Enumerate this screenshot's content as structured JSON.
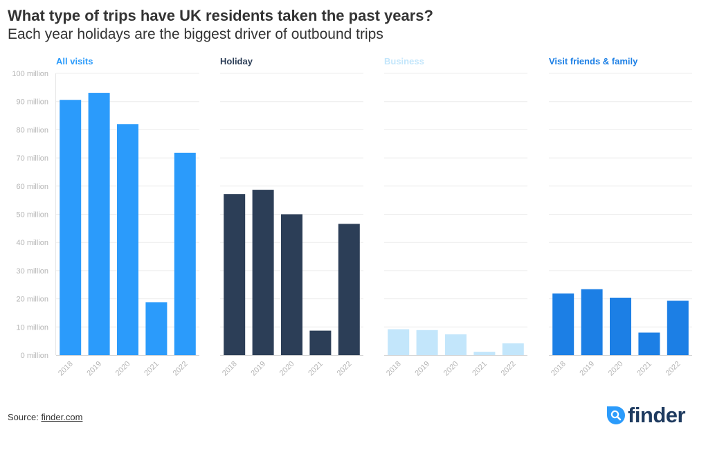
{
  "header": {
    "title": "What type of trips have UK residents taken the past years?",
    "subtitle": "Each year holidays are the biggest driver of outbound trips"
  },
  "footer": {
    "source_label": "Source:",
    "source_link": "finder.com",
    "logo_text": "finder"
  },
  "colors": {
    "all_visits": "#2b9bfb",
    "holiday": "#2c3e57",
    "business": "#c3e6fb",
    "visit_friends_family": "#1c7fe5"
  },
  "chart_data": {
    "type": "bar",
    "layout": "small-multiples",
    "ylim": [
      0,
      100
    ],
    "y_ticks": [
      {
        "value": 0,
        "label": "0 million"
      },
      {
        "value": 10,
        "label": "10 million"
      },
      {
        "value": 20,
        "label": "20 million"
      },
      {
        "value": 30,
        "label": "30 million"
      },
      {
        "value": 40,
        "label": "40 million"
      },
      {
        "value": 50,
        "label": "50 million"
      },
      {
        "value": 60,
        "label": "60 million"
      },
      {
        "value": 70,
        "label": "70 million"
      },
      {
        "value": 80,
        "label": "80 million"
      },
      {
        "value": 90,
        "label": "90 million"
      },
      {
        "value": 100,
        "label": "100 million"
      }
    ],
    "categories": [
      "2018",
      "2019",
      "2020",
      "2021",
      "2022"
    ],
    "grid": true,
    "series": [
      {
        "name": "All visits",
        "color": "#2b9bfb",
        "values": [
          90.6,
          93.1,
          82.0,
          18.8,
          71.8
        ]
      },
      {
        "name": "Holiday",
        "color": "#2c3e57",
        "values": [
          57.2,
          58.7,
          50.0,
          8.7,
          46.6
        ]
      },
      {
        "name": "Business",
        "color": "#c3e6fb",
        "values": [
          9.2,
          8.9,
          7.4,
          1.2,
          4.2
        ]
      },
      {
        "name": "Visit friends & family",
        "color": "#1c7fe5",
        "values": [
          21.9,
          23.4,
          20.4,
          8.0,
          19.3
        ]
      }
    ]
  }
}
